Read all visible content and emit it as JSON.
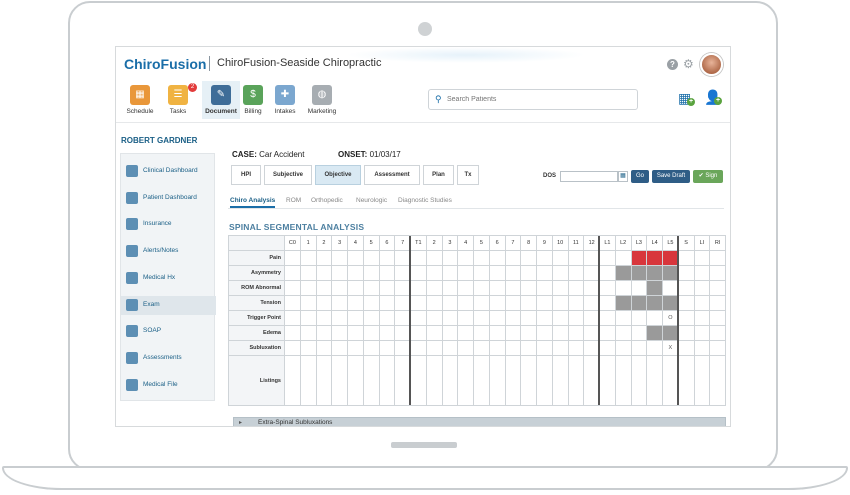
{
  "app": {
    "logo": "ChiroFusion",
    "practice": "ChiroFusion-Seaside Chiropractic"
  },
  "nav": {
    "items": [
      {
        "label": "Schedule",
        "color": "#e9973a",
        "glyph": "▦"
      },
      {
        "label": "Tasks",
        "color": "#f0b342",
        "glyph": "☰",
        "badge": "2"
      },
      {
        "label": "Document",
        "color": "#3f6d98",
        "glyph": "✎",
        "active": true
      },
      {
        "label": "Billing",
        "color": "#5aa35a",
        "glyph": "$"
      },
      {
        "label": "Intakes",
        "color": "#7ba7cf",
        "glyph": "✚"
      },
      {
        "label": "Marketing",
        "color": "#a7adb2",
        "glyph": "◍"
      }
    ],
    "search_placeholder": "Search Patients"
  },
  "patient": {
    "name": "ROBERT GARDNER",
    "case_key": "CASE:",
    "case_value": "Car Accident",
    "onset_key": "ONSET:",
    "onset_value": "01/03/17"
  },
  "sidebar": {
    "items": [
      {
        "label": "Clinical Dashboard"
      },
      {
        "label": "Patient Dashboard"
      },
      {
        "label": "Insurance"
      },
      {
        "label": "Alerts/Notes"
      },
      {
        "label": "Medical Hx"
      },
      {
        "label": "Exam",
        "active": true
      },
      {
        "label": "SOAP"
      },
      {
        "label": "Assessments"
      },
      {
        "label": "Medical File"
      }
    ]
  },
  "tabs": [
    "HPI",
    "Subjective",
    "Objective",
    "Assessment",
    "Plan",
    "Tx"
  ],
  "active_tab": "Objective",
  "dos": {
    "label": "DOS",
    "value": ""
  },
  "buttons": {
    "go": "Go",
    "save_draft": "Save Draft",
    "sign": "✔ Sign"
  },
  "subtabs": [
    "Chiro Analysis",
    "ROM",
    "Orthopedic",
    "Neurologic",
    "Diagnostic Studies"
  ],
  "active_subtab": "Chiro Analysis",
  "section_title": "SPINAL SEGMENTAL ANALYSIS",
  "grid": {
    "columns": [
      "C0",
      "1",
      "2",
      "3",
      "4",
      "5",
      "6",
      "7",
      "T1",
      "2",
      "3",
      "4",
      "5",
      "6",
      "7",
      "8",
      "9",
      "10",
      "11",
      "12",
      "L1",
      "L2",
      "L3",
      "L4",
      "L5",
      "S",
      "LI",
      "RI"
    ],
    "rows": [
      {
        "label": "Pain",
        "marks": {
          "L3": "red",
          "L4": "red",
          "L5": "red"
        }
      },
      {
        "label": "Asymmetry",
        "marks": {
          "L2": "gray",
          "L3": "gray",
          "L4": "gray",
          "L5": "gray"
        }
      },
      {
        "label": "ROM Abnormal",
        "marks": {
          "L4": "gray"
        }
      },
      {
        "label": "Tension",
        "marks": {
          "L2": "gray",
          "L3": "gray",
          "L4": "gray",
          "L5": "gray"
        }
      },
      {
        "label": "Trigger Point",
        "marks": {
          "L5": "O"
        }
      },
      {
        "label": "Edema",
        "marks": {
          "L4": "gray",
          "L5": "gray"
        }
      },
      {
        "label": "Subluxation",
        "marks": {
          "L5": "X"
        }
      },
      {
        "label": "Listings",
        "marks": {}
      }
    ]
  },
  "extra_section": "Extra-Spinal Subluxations"
}
